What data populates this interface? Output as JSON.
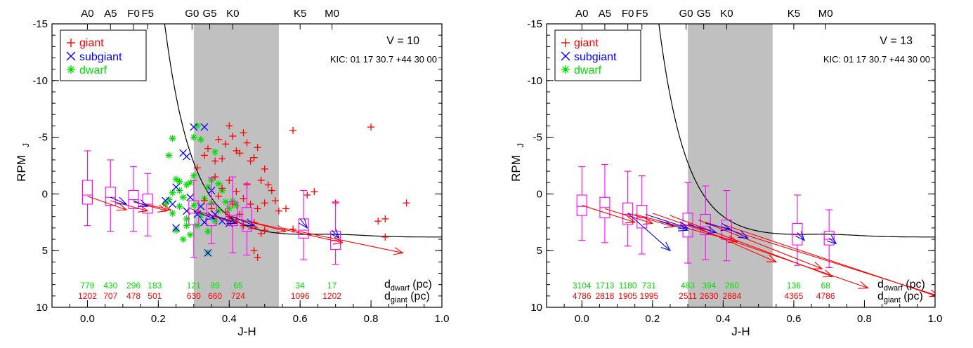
{
  "colors": {
    "giant": "#ff0000",
    "subgiant": "#0000ff",
    "dwarf": "#00e000",
    "box": "#ff00ff",
    "band": "#c0c0c0",
    "curve": "#000000"
  },
  "chart_data": [
    {
      "type": "scatter",
      "annotation": "V = 10",
      "kic": "KIC: 01 17 30.7  +44 30 00",
      "xlabel": "J-H",
      "ylabel": "RPM",
      "ylabel_sub": "J",
      "xlim": [
        -0.1,
        1.0
      ],
      "ylim": [
        10,
        -15
      ],
      "xticks": [
        "0.0",
        "0.2",
        "0.4",
        "0.6",
        "0.8",
        "1.0"
      ],
      "yticks": [
        "-15",
        "-10",
        "-5",
        "0",
        "5",
        "10"
      ],
      "spectral_types": [
        {
          "label": "A0",
          "x": 0.0
        },
        {
          "label": "A5",
          "x": 0.065
        },
        {
          "label": "F0",
          "x": 0.13
        },
        {
          "label": "F5",
          "x": 0.17
        },
        {
          "label": "G0",
          "x": 0.295
        },
        {
          "label": "G5",
          "x": 0.345
        },
        {
          "label": "K0",
          "x": 0.41
        },
        {
          "label": "K5",
          "x": 0.6
        },
        {
          "label": "M0",
          "x": 0.69
        }
      ],
      "band": [
        0.3,
        0.54
      ],
      "legend": {
        "giant": "giant",
        "subgiant": "subgiant",
        "dwarf": "dwarf",
        "position": "top-left"
      },
      "distance_labels": {
        "dwarf_label": "d",
        "dwarf_sub": "dwarf",
        "dwarf_unit": " (pc)",
        "giant_label": "d",
        "giant_sub": "giant",
        "giant_unit": " (pc)",
        "dwarf_values": [
          {
            "x": 0.0,
            "text": "779"
          },
          {
            "x": 0.065,
            "text": "430"
          },
          {
            "x": 0.13,
            "text": "296"
          },
          {
            "x": 0.19,
            "text": "183"
          },
          {
            "x": 0.3,
            "text": "121"
          },
          {
            "x": 0.36,
            "text": "99"
          },
          {
            "x": 0.425,
            "text": "65"
          },
          {
            "x": 0.6,
            "text": "34"
          },
          {
            "x": 0.69,
            "text": "17"
          }
        ],
        "giant_values": [
          {
            "x": 0.0,
            "text": "1202"
          },
          {
            "x": 0.065,
            "text": "707"
          },
          {
            "x": 0.13,
            "text": "478"
          },
          {
            "x": 0.19,
            "text": "501"
          },
          {
            "x": 0.3,
            "text": "630"
          },
          {
            "x": 0.36,
            "text": "660"
          },
          {
            "x": 0.425,
            "text": "724"
          },
          {
            "x": 0.6,
            "text": "1096"
          },
          {
            "x": 0.69,
            "text": "1202"
          }
        ]
      },
      "boxes": [
        {
          "x": 0.0,
          "low": -3.8,
          "q1": -1.2,
          "med": 0.1,
          "q3": 0.9,
          "high": 2.8
        },
        {
          "x": 0.065,
          "low": -3.0,
          "q1": -0.6,
          "med": 0.3,
          "q3": 1.0,
          "high": 3.3
        },
        {
          "x": 0.13,
          "low": -2.4,
          "q1": -0.3,
          "med": 0.5,
          "q3": 1.3,
          "high": 3.3
        },
        {
          "x": 0.17,
          "low": -1.8,
          "q1": 0.0,
          "med": 0.9,
          "q3": 1.7,
          "high": 3.7
        },
        {
          "x": 0.3,
          "low": -1.2,
          "q1": 0.6,
          "med": 1.7,
          "q3": 2.7,
          "high": 5.6
        },
        {
          "x": 0.35,
          "low": -1.4,
          "q1": 0.9,
          "med": 1.9,
          "q3": 2.8,
          "high": 4.4
        },
        {
          "x": 0.41,
          "low": -1.5,
          "q1": 0.7,
          "med": 1.9,
          "q3": 2.8,
          "high": 5.2
        },
        {
          "x": 0.45,
          "low": -0.9,
          "q1": 1.2,
          "med": 2.4,
          "q3": 3.3,
          "high": 5.4
        },
        {
          "x": 0.61,
          "low": -0.3,
          "q1": 2.2,
          "med": 3.2,
          "q3": 3.9,
          "high": 5.8
        },
        {
          "x": 0.7,
          "low": 0.7,
          "q1": 3.3,
          "med": 4.1,
          "q3": 4.9,
          "high": 6.2
        }
      ],
      "arrows": [
        {
          "x0": 0.0,
          "y0": 0.2,
          "x1": 0.11,
          "y1": 1.4,
          "c": "giant"
        },
        {
          "x0": 0.065,
          "y0": 0.6,
          "x1": 0.17,
          "y1": 1.5,
          "c": "giant"
        },
        {
          "x0": 0.13,
          "y0": 0.7,
          "x1": 0.225,
          "y1": 1.5,
          "c": "giant"
        },
        {
          "x0": 0.16,
          "y0": 0.9,
          "x1": 0.235,
          "y1": 1.4,
          "c": "giant"
        },
        {
          "x0": 0.29,
          "y0": 1.3,
          "x1": 0.42,
          "y1": 2.6,
          "c": "giant"
        },
        {
          "x0": 0.34,
          "y0": 1.8,
          "x1": 0.48,
          "y1": 3.0,
          "c": "giant"
        },
        {
          "x0": 0.4,
          "y0": 2.0,
          "x1": 0.56,
          "y1": 3.3,
          "c": "giant"
        },
        {
          "x0": 0.45,
          "y0": 2.4,
          "x1": 0.72,
          "y1": 4.3,
          "c": "giant"
        },
        {
          "x0": 0.55,
          "y0": 3.0,
          "x1": 0.89,
          "y1": 5.2,
          "c": "giant"
        },
        {
          "x0": 0.065,
          "y0": 0.3,
          "x1": 0.11,
          "y1": 0.9,
          "c": "subgiant"
        },
        {
          "x0": 0.13,
          "y0": 0.6,
          "x1": 0.17,
          "y1": 1.1,
          "c": "subgiant"
        },
        {
          "x0": 0.3,
          "y0": 1.5,
          "x1": 0.36,
          "y1": 2.2,
          "c": "subgiant"
        },
        {
          "x0": 0.36,
          "y0": 1.9,
          "x1": 0.42,
          "y1": 2.6,
          "c": "subgiant"
        },
        {
          "x0": 0.41,
          "y0": 2.0,
          "x1": 0.47,
          "y1": 2.8,
          "c": "subgiant"
        },
        {
          "x0": 0.6,
          "y0": 2.2,
          "x1": 0.62,
          "y1": 3.0,
          "c": "subgiant"
        },
        {
          "x0": 0.69,
          "y0": 3.2,
          "x1": 0.71,
          "y1": 3.9,
          "c": "subgiant"
        }
      ],
      "giants": [
        [
          0.31,
          -2.3
        ],
        [
          0.33,
          -3.4
        ],
        [
          0.34,
          -4.0
        ],
        [
          0.36,
          -2.9
        ],
        [
          0.37,
          -4.8
        ],
        [
          0.38,
          -3.1
        ],
        [
          0.39,
          -4.4
        ],
        [
          0.4,
          -6.0
        ],
        [
          0.41,
          -5.1
        ],
        [
          0.42,
          -3.8
        ],
        [
          0.43,
          -3.6
        ],
        [
          0.44,
          -5.4
        ],
        [
          0.45,
          -4.5
        ],
        [
          0.46,
          -2.9
        ],
        [
          0.47,
          -3.2
        ],
        [
          0.48,
          -4.1
        ],
        [
          0.36,
          -1.5
        ],
        [
          0.38,
          -0.5
        ],
        [
          0.4,
          -1.2
        ],
        [
          0.42,
          -0.2
        ],
        [
          0.44,
          0.4
        ],
        [
          0.46,
          0.9
        ],
        [
          0.48,
          1.3
        ],
        [
          0.5,
          0.8
        ],
        [
          0.52,
          -0.3
        ],
        [
          0.53,
          0.6
        ],
        [
          0.54,
          1.5
        ],
        [
          0.49,
          -1.2
        ],
        [
          0.5,
          -2.2
        ],
        [
          0.51,
          -0.8
        ],
        [
          0.43,
          1.8
        ],
        [
          0.47,
          2.5
        ],
        [
          0.49,
          3.5
        ],
        [
          0.45,
          -0.8
        ],
        [
          0.41,
          0.9
        ],
        [
          0.39,
          1.6
        ],
        [
          0.37,
          0.2
        ],
        [
          0.35,
          1.3
        ],
        [
          0.33,
          0.6
        ],
        [
          0.44,
          2.8
        ],
        [
          0.48,
          5.6
        ],
        [
          0.47,
          5.0
        ],
        [
          0.58,
          -5.6
        ],
        [
          0.56,
          1.3
        ],
        [
          0.62,
          0.1
        ],
        [
          0.64,
          -0.2
        ],
        [
          0.58,
          3.1
        ],
        [
          0.7,
          0.8
        ],
        [
          0.8,
          -5.9
        ],
        [
          0.9,
          0.8
        ],
        [
          0.82,
          2.4
        ],
        [
          0.84,
          2.2
        ],
        [
          0.84,
          3.8
        ],
        [
          0.5,
          3.2
        ],
        [
          0.4,
          2.0
        ],
        [
          0.42,
          2.3
        ]
      ],
      "subgiants": [
        [
          0.25,
          -0.6
        ],
        [
          0.27,
          -3.6
        ],
        [
          0.28,
          -3.3
        ],
        [
          0.3,
          -5.9
        ],
        [
          0.33,
          -5.9
        ],
        [
          0.33,
          2.5
        ],
        [
          0.34,
          5.2
        ],
        [
          0.25,
          3.0
        ],
        [
          0.28,
          1.5
        ],
        [
          0.31,
          1.8
        ],
        [
          0.35,
          -0.3
        ],
        [
          0.38,
          2.4
        ],
        [
          0.22,
          0.6
        ],
        [
          0.24,
          0.9
        ],
        [
          0.29,
          0.3
        ],
        [
          0.32,
          1.1
        ],
        [
          0.4,
          2.6
        ],
        [
          0.36,
          1.8
        ]
      ],
      "dwarfs": [
        [
          0.23,
          -3.4
        ],
        [
          0.24,
          -4.9
        ],
        [
          0.25,
          -1.3
        ],
        [
          0.26,
          -0.3
        ],
        [
          0.27,
          0.3
        ],
        [
          0.28,
          -0.8
        ],
        [
          0.29,
          -1.0
        ],
        [
          0.3,
          -5.0
        ],
        [
          0.31,
          -6.0
        ],
        [
          0.32,
          -4.8
        ],
        [
          0.34,
          -0.6
        ],
        [
          0.35,
          -1.2
        ],
        [
          0.36,
          -3.7
        ],
        [
          0.37,
          -0.9
        ],
        [
          0.38,
          -0.3
        ],
        [
          0.39,
          0.7
        ],
        [
          0.41,
          0.6
        ],
        [
          0.42,
          1.0
        ],
        [
          0.34,
          5.2
        ],
        [
          0.31,
          2.8
        ],
        [
          0.29,
          3.6
        ],
        [
          0.27,
          4.0
        ],
        [
          0.25,
          3.2
        ],
        [
          0.24,
          1.7
        ],
        [
          0.26,
          1.1
        ],
        [
          0.28,
          2.2
        ],
        [
          0.33,
          0.4
        ],
        [
          0.35,
          0.8
        ],
        [
          0.37,
          1.5
        ],
        [
          0.4,
          1.3
        ],
        [
          0.23,
          0.5
        ],
        [
          0.22,
          0.9
        ],
        [
          0.24,
          -0.1
        ],
        [
          0.26,
          -1.1
        ],
        [
          0.3,
          1.0
        ],
        [
          0.32,
          1.9
        ],
        [
          0.36,
          2.4
        ],
        [
          0.3,
          -1.6
        ],
        [
          0.28,
          2.8
        ],
        [
          0.34,
          3.3
        ]
      ]
    },
    {
      "type": "scatter",
      "annotation": "V = 13",
      "kic": "KIC: 01 17 30.7  +44 30 00",
      "xlabel": "J-H",
      "ylabel": "RPM",
      "ylabel_sub": "J",
      "xlim": [
        -0.1,
        1.0
      ],
      "ylim": [
        10,
        -15
      ],
      "xticks": [
        "0.0",
        "0.2",
        "0.4",
        "0.6",
        "0.8",
        "1.0"
      ],
      "yticks": [
        "-15",
        "-10",
        "-5",
        "0",
        "5",
        "10"
      ],
      "spectral_types": [
        {
          "label": "A0",
          "x": 0.0
        },
        {
          "label": "A5",
          "x": 0.065
        },
        {
          "label": "F0",
          "x": 0.13
        },
        {
          "label": "F5",
          "x": 0.17
        },
        {
          "label": "G0",
          "x": 0.295
        },
        {
          "label": "G5",
          "x": 0.345
        },
        {
          "label": "K0",
          "x": 0.41
        },
        {
          "label": "K5",
          "x": 0.6
        },
        {
          "label": "M0",
          "x": 0.69
        }
      ],
      "band": [
        0.3,
        0.54
      ],
      "legend": {
        "giant": "giant",
        "subgiant": "subgiant",
        "dwarf": "dwarf",
        "position": "top-left"
      },
      "distance_labels": {
        "dwarf_label": "d",
        "dwarf_sub": "dwarf",
        "dwarf_unit": " (pc)",
        "giant_label": "d",
        "giant_sub": "giant",
        "giant_unit": " (pc)",
        "dwarf_values": [
          {
            "x": 0.0,
            "text": "3104"
          },
          {
            "x": 0.065,
            "text": "1713"
          },
          {
            "x": 0.13,
            "text": "1180"
          },
          {
            "x": 0.19,
            "text": "731"
          },
          {
            "x": 0.3,
            "text": "483"
          },
          {
            "x": 0.36,
            "text": "394"
          },
          {
            "x": 0.425,
            "text": "260"
          },
          {
            "x": 0.6,
            "text": "136"
          },
          {
            "x": 0.69,
            "text": "68"
          }
        ],
        "giant_values": [
          {
            "x": 0.0,
            "text": "4786"
          },
          {
            "x": 0.065,
            "text": "2818"
          },
          {
            "x": 0.13,
            "text": "1905"
          },
          {
            "x": 0.19,
            "text": "1995"
          },
          {
            "x": 0.3,
            "text": "2511"
          },
          {
            "x": 0.36,
            "text": "2630"
          },
          {
            "x": 0.425,
            "text": "2884"
          },
          {
            "x": 0.6,
            "text": "4365"
          },
          {
            "x": 0.69,
            "text": "4786"
          }
        ]
      },
      "boxes": [
        {
          "x": 0.0,
          "low": -2.4,
          "q1": 0.1,
          "med": 1.1,
          "q3": 1.9,
          "high": 4.1
        },
        {
          "x": 0.065,
          "low": -2.6,
          "q1": 0.3,
          "med": 1.2,
          "q3": 2.1,
          "high": 4.3
        },
        {
          "x": 0.13,
          "low": -2.0,
          "q1": 0.8,
          "med": 1.8,
          "q3": 2.7,
          "high": 4.6
        },
        {
          "x": 0.17,
          "low": -1.6,
          "q1": 1.0,
          "med": 2.1,
          "q3": 3.0,
          "high": 5.3
        },
        {
          "x": 0.3,
          "low": -1.0,
          "q1": 1.7,
          "med": 2.8,
          "q3": 3.8,
          "high": 6.1
        },
        {
          "x": 0.35,
          "low": -0.7,
          "q1": 1.8,
          "med": 2.9,
          "q3": 3.6,
          "high": 5.8
        },
        {
          "x": 0.41,
          "low": -0.3,
          "q1": 2.3,
          "med": 3.2,
          "q3": 4.0,
          "high": 5.9
        },
        {
          "x": 0.61,
          "low": 0.1,
          "q1": 2.6,
          "med": 3.6,
          "q3": 4.5,
          "high": 6.3
        },
        {
          "x": 0.7,
          "low": 1.4,
          "q1": 3.3,
          "med": 4.0,
          "q3": 4.5,
          "high": 6.5
        }
      ],
      "arrows": [
        {
          "x0": 0.0,
          "y0": 1.0,
          "x1": 0.15,
          "y1": 2.5,
          "c": "giant"
        },
        {
          "x0": 0.065,
          "y0": 1.3,
          "x1": 0.2,
          "y1": 2.6,
          "c": "giant"
        },
        {
          "x0": 0.13,
          "y0": 1.7,
          "x1": 0.26,
          "y1": 2.9,
          "c": "giant"
        },
        {
          "x0": 0.15,
          "y0": 1.8,
          "x1": 0.44,
          "y1": 4.2,
          "c": "giant"
        },
        {
          "x0": 0.3,
          "y0": 2.6,
          "x1": 0.55,
          "y1": 6.0,
          "c": "giant"
        },
        {
          "x0": 0.33,
          "y0": 2.3,
          "x1": 0.68,
          "y1": 6.6,
          "c": "giant"
        },
        {
          "x0": 0.25,
          "y0": 1.9,
          "x1": 0.71,
          "y1": 7.3,
          "c": "giant"
        },
        {
          "x0": 0.2,
          "y0": 1.7,
          "x1": 0.81,
          "y1": 8.3,
          "c": "giant"
        },
        {
          "x0": 0.35,
          "y0": 2.5,
          "x1": 1.01,
          "y1": 9.0,
          "c": "giant"
        },
        {
          "x0": 0.4,
          "y0": 2.7,
          "x1": 1.06,
          "y1": 9.6,
          "c": "giant"
        },
        {
          "x0": 0.13,
          "y0": 1.7,
          "x1": 0.25,
          "y1": 5.0,
          "c": "subgiant"
        },
        {
          "x0": 0.18,
          "y0": 1.8,
          "x1": 0.3,
          "y1": 3.0,
          "c": "subgiant"
        },
        {
          "x0": 0.3,
          "y0": 2.7,
          "x1": 0.38,
          "y1": 3.4,
          "c": "subgiant"
        },
        {
          "x0": 0.35,
          "y0": 2.6,
          "x1": 0.42,
          "y1": 3.1,
          "c": "subgiant"
        },
        {
          "x0": 0.41,
          "y0": 3.0,
          "x1": 0.47,
          "y1": 3.9,
          "c": "subgiant"
        },
        {
          "x0": 0.61,
          "y0": 3.4,
          "x1": 0.63,
          "y1": 4.1,
          "c": "subgiant"
        },
        {
          "x0": 0.7,
          "y0": 3.9,
          "x1": 0.72,
          "y1": 4.4,
          "c": "subgiant"
        },
        {
          "x0": 0.22,
          "y0": 2.4,
          "x1": 0.3,
          "y1": 3.2,
          "c": "subgiant"
        }
      ],
      "giants": [],
      "subgiants": [],
      "dwarfs": []
    }
  ]
}
